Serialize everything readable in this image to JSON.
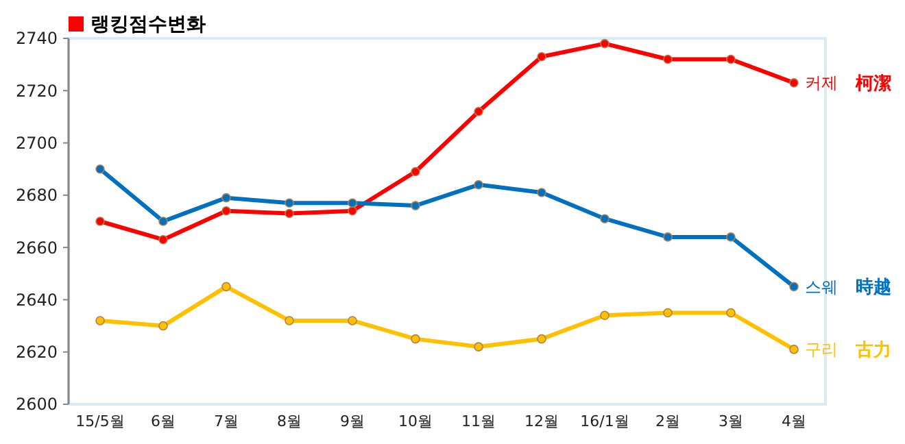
{
  "chart_data": {
    "type": "line",
    "title": "랭킹점수변화",
    "categories": [
      "15/5월",
      "6월",
      "7월",
      "8월",
      "9월",
      "10월",
      "11월",
      "12월",
      "16/1월",
      "2월",
      "3월",
      "4월"
    ],
    "series": [
      {
        "name": "커제",
        "color": "#ff0000",
        "values": [
          2670,
          2663,
          2674,
          2673,
          2674,
          2689,
          2712,
          2733,
          2738,
          2732,
          2732,
          2723
        ]
      },
      {
        "name": "스웨",
        "color": "#0070c0",
        "values": [
          2690,
          2670,
          2679,
          2677,
          2677,
          2676,
          2684,
          2681,
          2671,
          2664,
          2664,
          2645
        ]
      },
      {
        "name": "구리",
        "color": "#ffc000",
        "values": [
          2632,
          2630,
          2645,
          2632,
          2632,
          2625,
          2622,
          2625,
          2634,
          2635,
          2635,
          2621
        ]
      }
    ],
    "ylim": [
      2600,
      2740
    ],
    "yticks": [
      2600,
      2620,
      2640,
      2660,
      2680,
      2700,
      2720,
      2740
    ],
    "grid": false,
    "marker": "circle",
    "line_style": "solid",
    "annotations": [
      "柯潔",
      "時越",
      "古力"
    ]
  }
}
